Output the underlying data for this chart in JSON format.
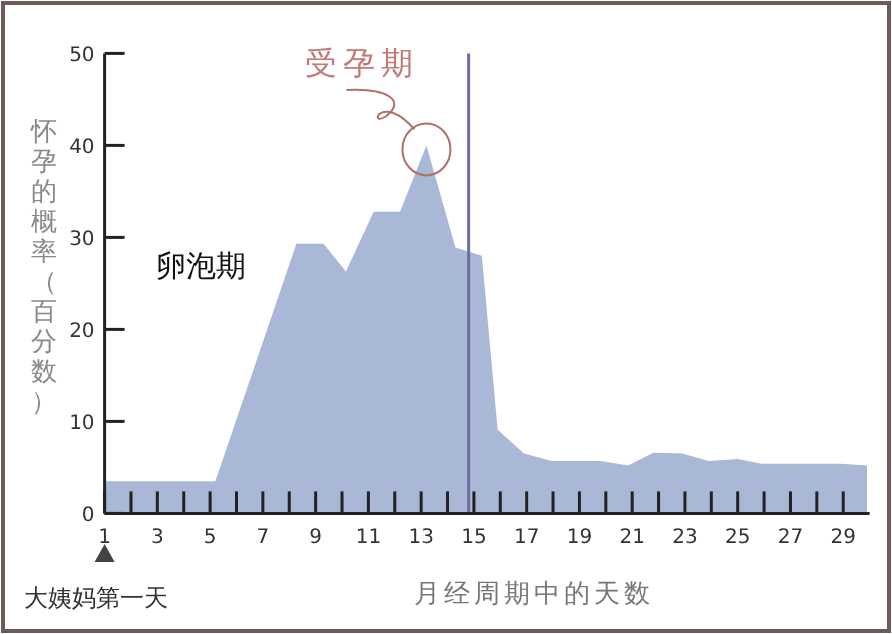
{
  "chart_data": {
    "type": "area",
    "ylabel": "怀孕的概率（百分数）",
    "xlabel": "月经周期中的天数",
    "x": [
      1,
      5.2,
      8.27,
      9.3,
      10.15,
      11.2,
      12.2,
      13.2,
      14.3,
      15.3,
      15.9,
      16.9,
      17.95,
      19.8,
      20.85,
      21.8,
      22.9,
      23.9,
      25,
      25.9,
      27.8,
      28.9,
      29.9
    ],
    "values": [
      3.5,
      3.5,
      29.3,
      29.3,
      26.3,
      32.8,
      32.8,
      40,
      28.9,
      28,
      9.1,
      6.5,
      5.7,
      5.7,
      5.2,
      6.6,
      6.5,
      5.7,
      5.9,
      5.4,
      5.4,
      5.4,
      5.2
    ],
    "color": "#a9b8d6",
    "xlim": [
      1,
      30
    ],
    "ylim": [
      0,
      50
    ],
    "xticks": [
      1,
      {
        "value": 2,
        "label": null
      },
      3,
      {
        "value": 4,
        "label": null
      },
      5,
      {
        "value": 6,
        "label": null
      },
      7,
      {
        "value": 8,
        "label": null
      },
      9,
      {
        "value": 10,
        "label": null
      },
      11,
      {
        "value": 12,
        "label": null
      },
      13,
      {
        "value": 14,
        "label": null
      },
      15,
      {
        "value": 16,
        "label": null
      },
      17,
      {
        "value": 18,
        "label": null
      },
      19,
      {
        "value": 20,
        "label": null
      },
      21,
      {
        "value": 22,
        "label": null
      },
      23,
      {
        "value": 24,
        "label": null
      },
      25,
      {
        "value": 26,
        "label": null
      },
      27,
      {
        "value": 28,
        "label": null
      },
      29
    ],
    "yticks": [
      0,
      10,
      20,
      30,
      40,
      50
    ],
    "ref_lines": [
      {
        "axis": "x",
        "value": 14.8,
        "color": "#6b6f9e"
      }
    ],
    "annotations": [
      {
        "text": "受孕期",
        "x": 13.2,
        "y": 40
      },
      "卵泡期",
      "大姨妈第一天"
    ]
  }
}
